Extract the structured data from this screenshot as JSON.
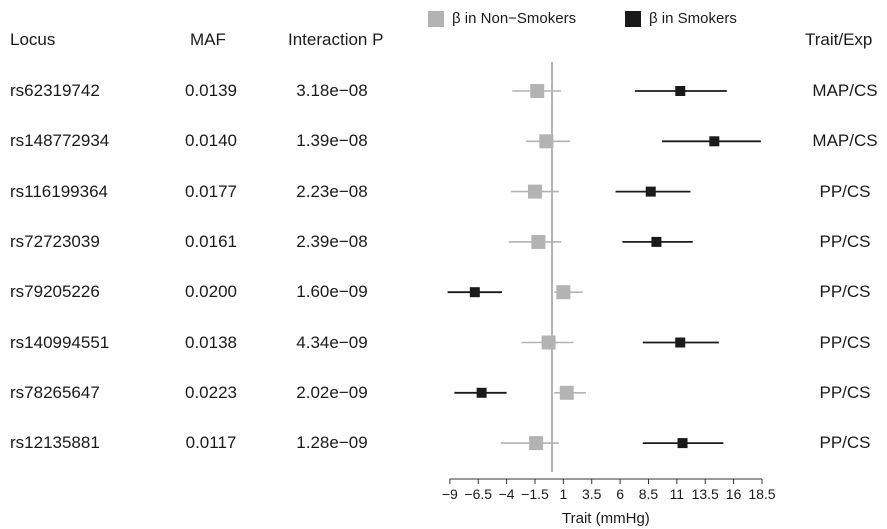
{
  "headers": {
    "locus": "Locus",
    "maf": "MAF",
    "interaction_p": "Interaction P",
    "trait_exp": "Trait/Exp"
  },
  "legend": {
    "non_smokers": "β in Non−Smokers",
    "smokers": "β in Smokers",
    "non_smokers_color": "#b3b3b3",
    "smokers_color": "#1a1a1a"
  },
  "rows": [
    {
      "locus": "rs62319742",
      "maf": "0.0139",
      "p": "3.18e−08",
      "trait": "MAP/CS"
    },
    {
      "locus": "rs148772934",
      "maf": "0.0140",
      "p": "1.39e−08",
      "trait": "MAP/CS"
    },
    {
      "locus": "rs116199364",
      "maf": "0.0177",
      "p": "2.23e−08",
      "trait": "PP/CS"
    },
    {
      "locus": "rs72723039",
      "maf": "0.0161",
      "p": "2.39e−08",
      "trait": "PP/CS"
    },
    {
      "locus": "rs79205226",
      "maf": "0.0200",
      "p": "1.60e−09",
      "trait": "PP/CS"
    },
    {
      "locus": "rs140994551",
      "maf": "0.0138",
      "p": "4.34e−09",
      "trait": "PP/CS"
    },
    {
      "locus": "rs78265647",
      "maf": "0.0223",
      "p": "2.02e−09",
      "trait": "PP/CS"
    },
    {
      "locus": "rs12135881",
      "maf": "0.0117",
      "p": "1.28e−09",
      "trait": "PP/CS"
    }
  ],
  "chart_data": {
    "type": "forest",
    "xlabel": "Trait (mmHg)",
    "xlim": [
      -11,
      18.5
    ],
    "xticks": [
      -9,
      -6.5,
      -4,
      -1.5,
      1,
      3.5,
      6,
      8.5,
      11,
      13.5,
      16,
      18.5
    ],
    "xtick_labels": [
      "−9",
      "−6.5",
      "−4",
      "−1.5",
      "1",
      "3.5",
      "6",
      "8.5",
      "11",
      "13.5",
      "16",
      "18.5"
    ],
    "reference_line": 0,
    "series": [
      {
        "name": "β in Non−Smokers",
        "color": "#b3b3b3",
        "estimates": [
          -1.3,
          -0.5,
          -1.5,
          -1.2,
          1.0,
          -0.3,
          1.3,
          -1.4
        ],
        "ci_low": [
          -3.5,
          -2.3,
          -3.6,
          -3.8,
          0.2,
          -2.7,
          0.2,
          -4.5
        ],
        "ci_high": [
          0.8,
          1.6,
          0.6,
          0.8,
          2.7,
          1.9,
          3.0,
          0.6
        ]
      },
      {
        "name": "β in Smokers",
        "color": "#1a1a1a",
        "estimates": [
          11.3,
          14.3,
          8.7,
          9.2,
          -6.8,
          11.3,
          -6.2,
          11.5
        ],
        "ci_low": [
          7.3,
          9.7,
          5.6,
          6.2,
          -9.2,
          8.0,
          -8.6,
          8.0
        ],
        "ci_high": [
          15.4,
          18.4,
          12.2,
          12.4,
          -4.4,
          14.7,
          -4.0,
          15.1
        ]
      }
    ]
  }
}
